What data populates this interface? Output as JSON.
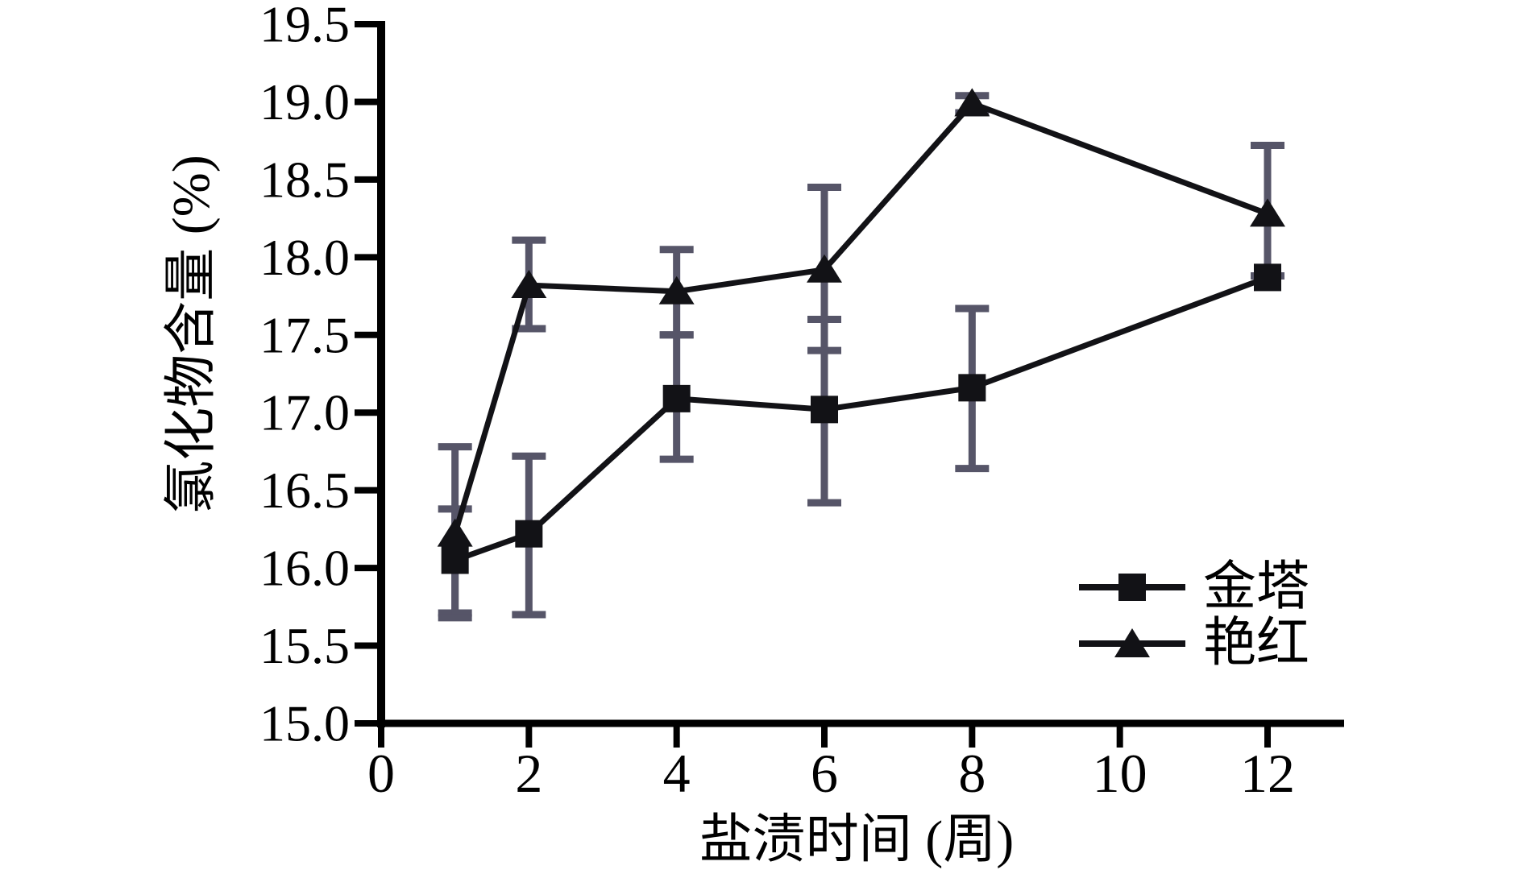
{
  "figure": {
    "background": "#ffffff"
  },
  "chart_data": {
    "type": "line",
    "title": "",
    "xlabel": "盐渍时间 (周)",
    "ylabel": "氯化物含量 (%)",
    "xlim": [
      0,
      13
    ],
    "ylim": [
      15.0,
      19.5
    ],
    "x_ticks": [
      0,
      2,
      4,
      6,
      8,
      10,
      12
    ],
    "y_ticks": [
      15.0,
      15.5,
      16.0,
      16.5,
      17.0,
      17.5,
      18.0,
      18.5,
      19.0,
      19.5
    ],
    "grid": false,
    "legend_position": "inside-lower-right",
    "x": [
      1,
      2,
      4,
      6,
      8,
      12
    ],
    "series": [
      {
        "name": "金塔",
        "marker": "square",
        "values": [
          16.05,
          16.22,
          17.09,
          17.02,
          17.16,
          17.87
        ],
        "err_low": [
          15.71,
          15.7,
          16.7,
          16.42,
          16.64,
          null
        ],
        "err_high": [
          16.38,
          16.72,
          17.5,
          17.6,
          17.67,
          null
        ]
      },
      {
        "name": "艳红",
        "marker": "triangle",
        "values": [
          16.22,
          17.82,
          17.78,
          17.92,
          18.99,
          18.28
        ],
        "err_low": [
          15.68,
          17.54,
          17.5,
          17.4,
          18.93,
          17.88
        ],
        "err_high": [
          16.78,
          18.11,
          18.05,
          18.45,
          19.04,
          18.72
        ]
      }
    ]
  },
  "style": {
    "line_color": "#121216",
    "marker_color": "#121216",
    "error_bar_color": "#565568",
    "axis_color": "#000000",
    "text_color": "#000000"
  }
}
